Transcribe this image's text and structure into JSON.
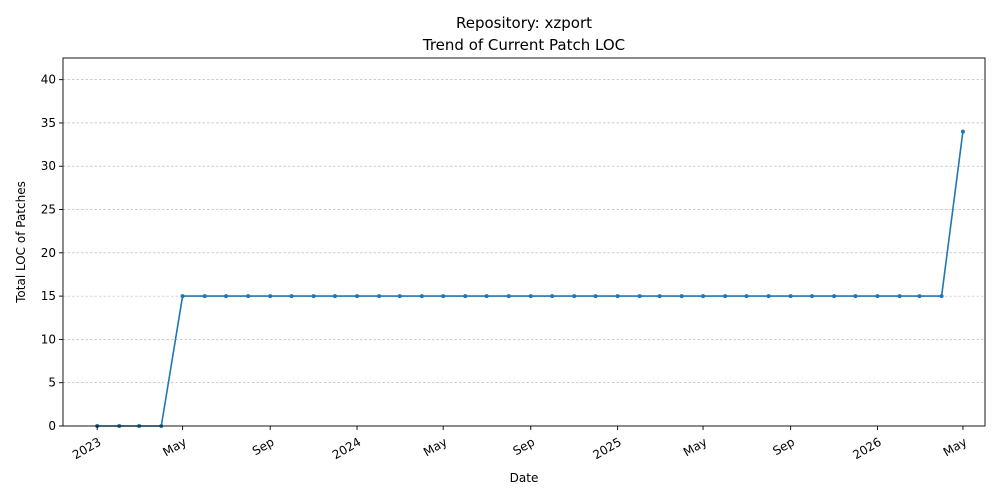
{
  "chart_data": {
    "type": "line",
    "title": "Repository: xzport",
    "subtitle": "Trend of Current Patch LOC",
    "xlabel": "Date",
    "ylabel": "Total LOC of Patches",
    "ylim": [
      0,
      42.5
    ],
    "yticks": [
      0,
      5,
      10,
      15,
      20,
      25,
      30,
      35,
      40
    ],
    "xlim": [
      "2022-11-14",
      "2026-06-01"
    ],
    "xticks": [
      {
        "date": "2023-01-01",
        "label": "2023"
      },
      {
        "date": "2023-05-01",
        "label": "May"
      },
      {
        "date": "2023-09-01",
        "label": "Sep"
      },
      {
        "date": "2024-01-01",
        "label": "2024"
      },
      {
        "date": "2024-05-01",
        "label": "May"
      },
      {
        "date": "2024-09-01",
        "label": "Sep"
      },
      {
        "date": "2025-01-01",
        "label": "2025"
      },
      {
        "date": "2025-05-01",
        "label": "May"
      },
      {
        "date": "2025-09-01",
        "label": "Sep"
      },
      {
        "date": "2026-01-01",
        "label": "2026"
      },
      {
        "date": "2026-05-01",
        "label": "May"
      }
    ],
    "grid": "y",
    "color": "#1f77b4",
    "series": [
      {
        "x": [
          "2023-01-01",
          "2023-02-01",
          "2023-03-01",
          "2023-04-01",
          "2023-05-01",
          "2023-06-01",
          "2023-07-01",
          "2023-08-01",
          "2023-09-01",
          "2023-10-01",
          "2023-11-01",
          "2023-12-01",
          "2024-01-01",
          "2024-02-01",
          "2024-03-01",
          "2024-04-01",
          "2024-05-01",
          "2024-06-01",
          "2024-07-01",
          "2024-08-01",
          "2024-09-01",
          "2024-10-01",
          "2024-11-01",
          "2024-12-01",
          "2025-01-01",
          "2025-02-01",
          "2025-03-01",
          "2025-04-01",
          "2025-05-01",
          "2025-06-01",
          "2025-07-01",
          "2025-08-01",
          "2025-09-01",
          "2025-10-01",
          "2025-11-01",
          "2025-12-01",
          "2026-01-01",
          "2026-02-01",
          "2026-03-01",
          "2026-04-01",
          "2026-05-01"
        ],
        "values": [
          0,
          0,
          0,
          0,
          15,
          15,
          15,
          15,
          15,
          15,
          15,
          15,
          15,
          15,
          15,
          15,
          15,
          15,
          15,
          15,
          15,
          15,
          15,
          15,
          15,
          15,
          15,
          15,
          15,
          15,
          15,
          15,
          15,
          15,
          15,
          15,
          15,
          15,
          15,
          15,
          34
        ]
      }
    ]
  }
}
